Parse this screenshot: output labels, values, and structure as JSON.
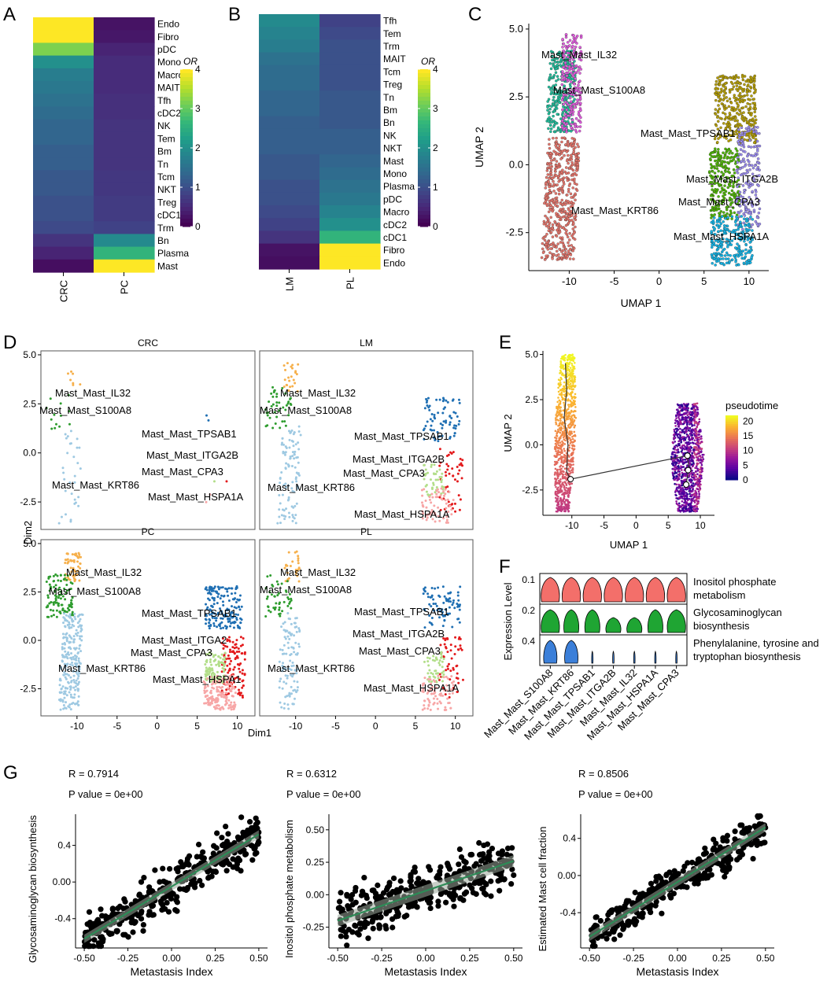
{
  "chart_data": [
    {
      "panel": "A",
      "type": "heatmap",
      "columns": [
        "CRC",
        "PC"
      ],
      "rows": [
        "Endo",
        "Fibro",
        "pDC",
        "Mono",
        "Macro",
        "MAIT",
        "Tfh",
        "cDC2",
        "NK",
        "Tem",
        "Bm",
        "Tn",
        "Tcm",
        "NKT",
        "Treg",
        "cDC1",
        "Trm",
        "Bn",
        "Plasma",
        "Mast"
      ],
      "values": [
        [
          4.0,
          0.2
        ],
        [
          4.0,
          0.25
        ],
        [
          3.2,
          0.4
        ],
        [
          2.0,
          0.5
        ],
        [
          1.7,
          0.5
        ],
        [
          1.6,
          0.5
        ],
        [
          1.5,
          0.55
        ],
        [
          1.4,
          0.55
        ],
        [
          1.3,
          0.6
        ],
        [
          1.3,
          0.6
        ],
        [
          1.2,
          0.6
        ],
        [
          1.2,
          0.6
        ],
        [
          1.1,
          0.65
        ],
        [
          1.1,
          0.65
        ],
        [
          1.0,
          0.7
        ],
        [
          1.0,
          0.7
        ],
        [
          0.9,
          0.8
        ],
        [
          0.6,
          1.9
        ],
        [
          0.4,
          2.6
        ],
        [
          0.15,
          4.0
        ]
      ],
      "legend_title": "OR",
      "legend_ticks": [
        0,
        1,
        2,
        3,
        4
      ]
    },
    {
      "panel": "B",
      "type": "heatmap",
      "columns": [
        "LM",
        "PL"
      ],
      "rows": [
        "Tfh",
        "Tem",
        "Trm",
        "MAIT",
        "Tcm",
        "Treg",
        "Tn",
        "Bm",
        "Bn",
        "NK",
        "NKT",
        "Mast",
        "Mono",
        "Plasma",
        "pDC",
        "Macro",
        "cDC2",
        "cDC1",
        "Fibro",
        "Endo"
      ],
      "values": [
        [
          1.9,
          0.8
        ],
        [
          1.8,
          0.9
        ],
        [
          1.7,
          1.0
        ],
        [
          1.5,
          1.0
        ],
        [
          1.4,
          1.0
        ],
        [
          1.4,
          1.0
        ],
        [
          1.3,
          1.1
        ],
        [
          1.3,
          1.1
        ],
        [
          1.2,
          1.1
        ],
        [
          1.2,
          1.2
        ],
        [
          1.2,
          1.2
        ],
        [
          1.1,
          1.3
        ],
        [
          1.1,
          1.4
        ],
        [
          1.0,
          1.5
        ],
        [
          1.0,
          1.6
        ],
        [
          0.9,
          1.8
        ],
        [
          0.8,
          2.0
        ],
        [
          0.6,
          2.6
        ],
        [
          0.2,
          4.0
        ],
        [
          0.15,
          4.0
        ]
      ],
      "legend_title": "OR",
      "legend_ticks": [
        0,
        1,
        2,
        3,
        4
      ]
    },
    {
      "panel": "C",
      "type": "scatter",
      "xlabel": "UMAP 1",
      "ylabel": "UMAP 2",
      "xticks": [
        -10,
        -5,
        0,
        5,
        10
      ],
      "yticks": [
        -2.5,
        0.0,
        2.5,
        5.0
      ],
      "xlim": [
        -14.5,
        12.2
      ],
      "ylim": [
        -3.9,
        5.2
      ],
      "clusters": [
        {
          "label": "Mast_Mast_IL32",
          "color": "#1fbf9c",
          "center": [
            -11.6,
            3.0
          ]
        },
        {
          "label": "Mast_Mast_S100A8",
          "color": "#e25ce0",
          "center": [
            -10.0,
            3.4
          ]
        },
        {
          "label": "Mast_Mast_KRT86",
          "color": "#e8756b",
          "center": [
            -11.0,
            -1.5
          ]
        },
        {
          "label": "Mast_Mast_TPSAB1",
          "color": "#b79f00",
          "center": [
            8.0,
            1.6
          ]
        },
        {
          "label": "Mast_Mast_ITGA2B",
          "color": "#4db600",
          "center": [
            7.4,
            -0.8
          ]
        },
        {
          "label": "Mast_Mast_CPA3",
          "color": "#9b8cf0",
          "center": [
            9.6,
            -0.5
          ]
        },
        {
          "label": "Mast_Mast_HSPA1A",
          "color": "#12b5e8",
          "center": [
            8.0,
            -2.8
          ]
        }
      ]
    },
    {
      "panel": "D",
      "type": "scatter",
      "facets": [
        "CRC",
        "LM",
        "PC",
        "PL"
      ],
      "xlabel": "Dim1",
      "ylabel": "Dim2",
      "xticks": [
        -10,
        -5,
        0,
        5,
        10
      ],
      "yticks": [
        -2.5,
        0.0,
        2.5,
        5.0
      ],
      "xlim": [
        -14.5,
        12.2
      ],
      "ylim": [
        -3.9,
        5.2
      ],
      "labels": [
        "Mast_Mast_IL32",
        "Mast_Mast_S100A8",
        "Mast_Mast_TPSAB1",
        "Mast_Mast_ITGA2B",
        "Mast_Mast_CPA3",
        "Mast_Mast_KRT86",
        "Mast_Mast_HSPA1A"
      ],
      "pc_labels": [
        "Mast_Mast_IL32",
        "Mast_Mast_S100A8",
        "Mast_Mast_TPSAB1",
        "Mast_Mast_ITGA2",
        "Mast_Mast_CPA3",
        "Mast_Mast_KRT86",
        "Mast_Mast_HSPA1"
      ],
      "cluster_colors": {
        "IL32": "#f6b04c",
        "S100A8": "#2e9c2e",
        "KRT86": "#9ec9e2",
        "TPSAB1": "#1f6fb3",
        "ITGA2B": "#e31a1c",
        "CPA3": "#b2de89",
        "HSPA1A": "#f7a6a6"
      }
    },
    {
      "panel": "E",
      "type": "scatter",
      "xlabel": "UMAP 1",
      "ylabel": "UMAP 2",
      "xticks": [
        -10,
        -5,
        0,
        5,
        10
      ],
      "yticks": [
        -2.5,
        0.0,
        2.5,
        5.0
      ],
      "xlim": [
        -14.5,
        12.2
      ],
      "ylim": [
        -3.9,
        5.2
      ],
      "legend_title": "pseudotime",
      "legend_ticks": [
        0,
        5,
        10,
        15,
        20
      ]
    },
    {
      "panel": "F",
      "type": "violin",
      "ylabel": "Expression Level",
      "rows": [
        {
          "name": "Inositol phosphate metabolism",
          "tick": "0.1",
          "color": "#f36f6a"
        },
        {
          "name": "Glycosaminoglycan biosynthesis",
          "tick": "0.2",
          "color": "#1fa533"
        },
        {
          "name": "Phenylalanine, tyrosine and tryptophan biosynthesis",
          "tick": "0.4",
          "color": "#3b7fd9"
        }
      ],
      "row_label_lines": [
        [
          "Inositol phosphate",
          "metabolism"
        ],
        [
          "Glycosaminoglycan",
          "biosynthesis"
        ],
        [
          "Phenylalanine, tyrosine and",
          "tryptophan biosynthesis"
        ]
      ],
      "categories": [
        "Mast_Mast_S100A8",
        "Mast_Mast_KRT86",
        "Mast_Mast_TPSAB1",
        "Mast_Mast_ITGA2B",
        "Mast_Mast_IL32",
        "Mast_Mast_HSPA1A",
        "Mast_Mast_CPA3"
      ]
    },
    {
      "panel": "G",
      "type": "scatter",
      "plots": [
        {
          "R": "R = 0.7914",
          "P": "P value = 0e+00",
          "xlabel": "Metastasis Index",
          "ylabel": "Glycosaminoglycan biosynthesis",
          "xlim": [
            -0.55,
            0.55
          ],
          "ylim": [
            -0.72,
            0.74
          ],
          "xticks": [
            -0.5,
            -0.25,
            0.0,
            0.25,
            0.5
          ],
          "yticks": [
            -0.4,
            0.0,
            0.4
          ],
          "fit": [
            [
              -0.5,
              -0.62
            ],
            [
              0.5,
              0.52
            ]
          ],
          "n": 380,
          "noise": 0.2
        },
        {
          "R": "R = 0.6312",
          "P": "P value = 0e+00",
          "xlabel": "Metastasis Index",
          "ylabel": "Inositol phosphate metabolism",
          "xlim": [
            -0.55,
            0.55
          ],
          "ylim": [
            -0.41,
            0.62
          ],
          "xticks": [
            -0.5,
            -0.25,
            0.0,
            0.25,
            0.5
          ],
          "yticks": [
            -0.25,
            0.0,
            0.25,
            0.5
          ],
          "fit": [
            [
              -0.5,
              -0.2
            ],
            [
              0.5,
              0.26
            ]
          ],
          "n": 380,
          "noise": 0.17
        },
        {
          "R": "R = 0.8506",
          "P": "P value = 0e+00",
          "xlabel": "Metastasis Index",
          "ylabel": "Estimated Mast cell fraction",
          "xlim": [
            -0.55,
            0.55
          ],
          "ylim": [
            -0.78,
            0.66
          ],
          "xticks": [
            -0.5,
            -0.25,
            0.0,
            0.25,
            0.5
          ],
          "yticks": [
            -0.4,
            0.0,
            0.4
          ],
          "fit": [
            [
              -0.5,
              -0.66
            ],
            [
              0.5,
              0.52
            ]
          ],
          "n": 380,
          "noise": 0.16
        }
      ]
    }
  ],
  "panel_letters": [
    "A",
    "B",
    "C",
    "D",
    "E",
    "F",
    "G"
  ]
}
